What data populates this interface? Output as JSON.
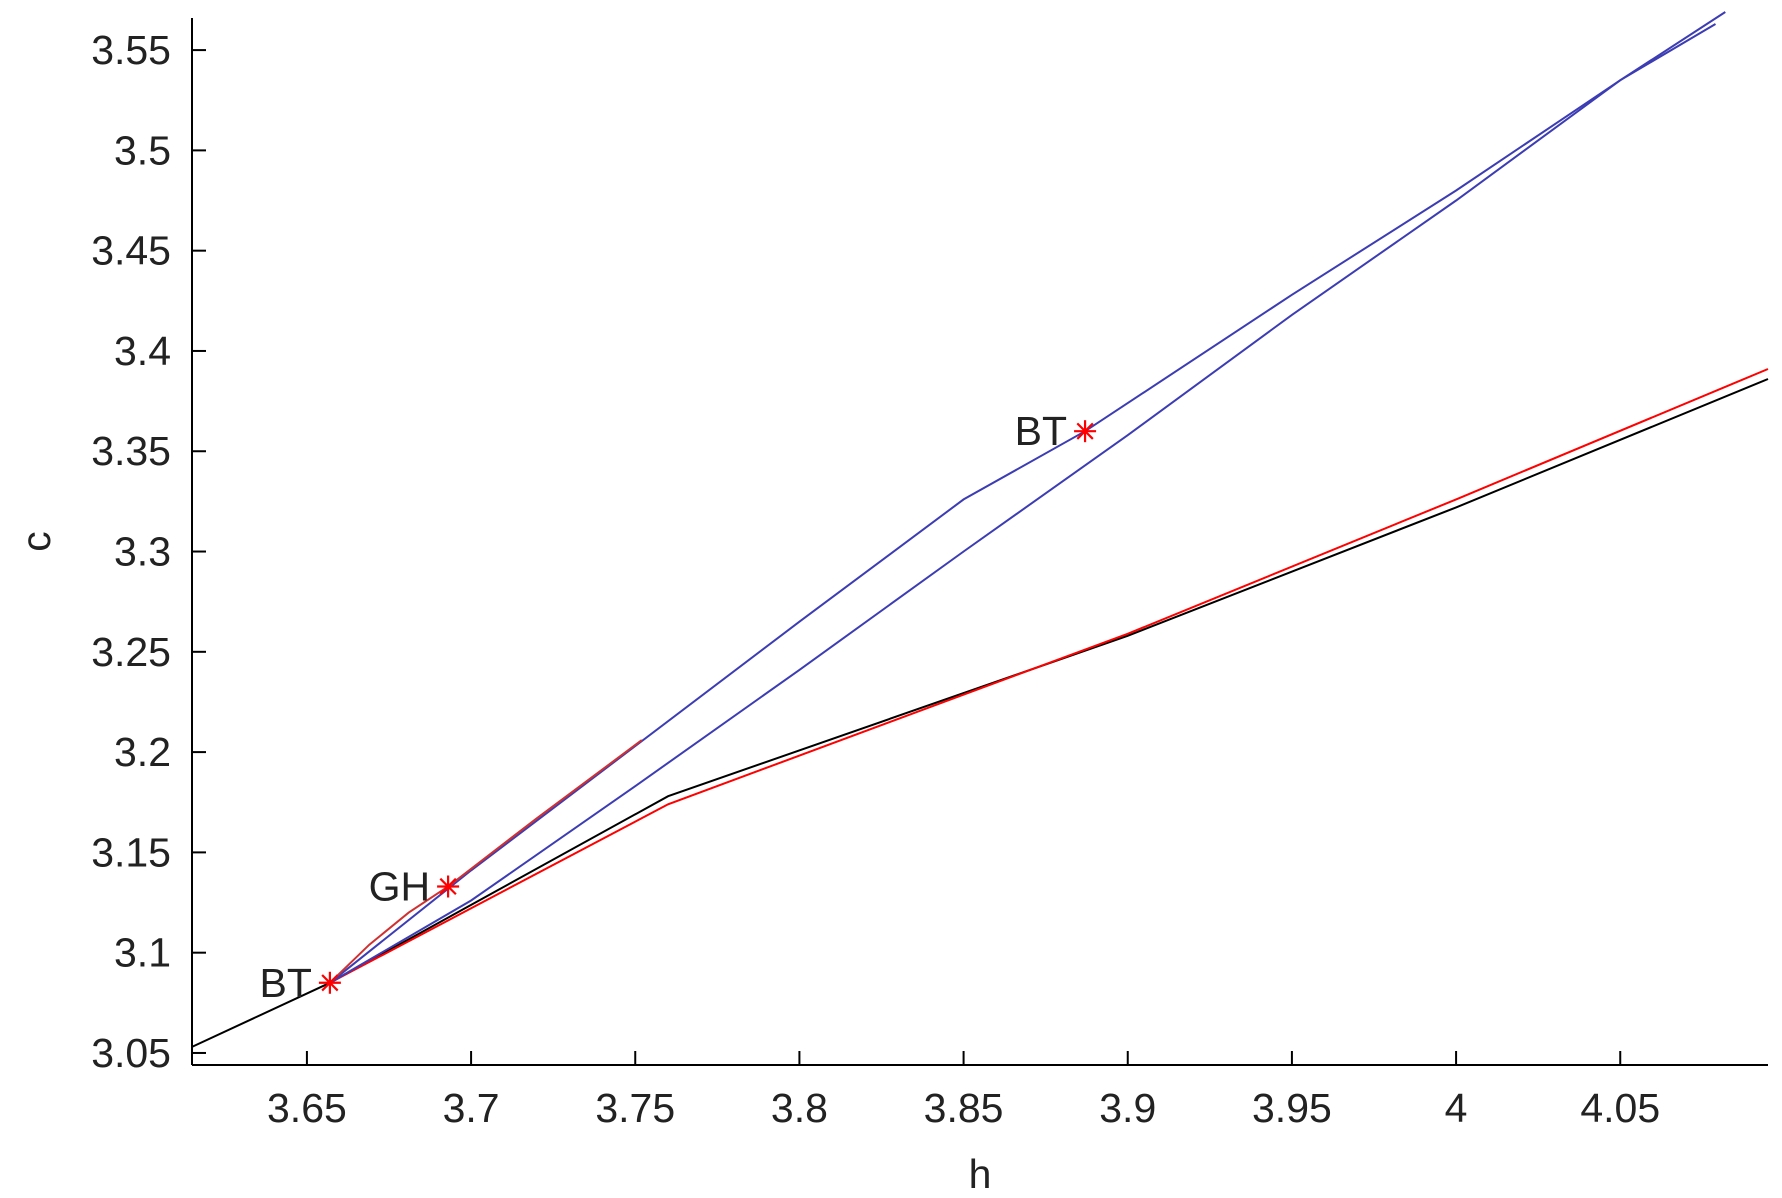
{
  "chart_data": {
    "type": "line",
    "xlabel": "h",
    "ylabel": "c",
    "xlim": [
      3.615,
      4.095
    ],
    "ylim": [
      3.044,
      3.566
    ],
    "grid": false,
    "legend": "none",
    "xticks": [
      3.65,
      3.7,
      3.75,
      3.8,
      3.85,
      3.9,
      3.95,
      4,
      4.05
    ],
    "xtick_labels": [
      "3.65",
      "3.7",
      "3.75",
      "3.8",
      "3.85",
      "3.9",
      "3.95",
      "4",
      "4.05"
    ],
    "yticks": [
      3.05,
      3.1,
      3.15,
      3.2,
      3.25,
      3.3,
      3.35,
      3.4,
      3.45,
      3.5,
      3.55
    ],
    "ytick_labels": [
      "3.05",
      "3.1",
      "3.15",
      "3.2",
      "3.25",
      "3.3",
      "3.35",
      "3.4",
      "3.45",
      "3.5",
      "3.55"
    ],
    "series": [
      {
        "color": "#000000",
        "x": [
          3.615,
          3.657,
          3.76,
          3.9,
          4.0,
          4.095
        ],
        "y": [
          3.053,
          3.085,
          3.178,
          3.258,
          3.322,
          3.386
        ]
      },
      {
        "color": "#ff0000",
        "x": [
          3.657,
          3.76,
          3.9,
          4.0,
          4.095
        ],
        "y": [
          3.085,
          3.174,
          3.259,
          3.326,
          3.391
        ]
      },
      {
        "color": "#3c3cb4",
        "x": [
          3.657,
          3.7,
          3.75,
          3.8,
          3.85,
          3.887,
          3.95,
          4.0,
          4.05,
          4.079
        ],
        "y": [
          3.085,
          3.141,
          3.203,
          3.265,
          3.326,
          3.36,
          3.428,
          3.48,
          3.535,
          3.563
        ]
      },
      {
        "color": "#3c3cb4",
        "x": [
          3.657,
          3.7,
          3.75,
          3.8,
          3.85,
          3.9,
          3.95,
          4.0,
          4.05,
          4.082
        ],
        "y": [
          3.085,
          3.126,
          3.183,
          3.241,
          3.3,
          3.358,
          3.418,
          3.475,
          3.535,
          3.569
        ]
      },
      {
        "color": "#d03030",
        "x": [
          3.657,
          3.669,
          3.681,
          3.693,
          3.72,
          3.752
        ],
        "y": [
          3.085,
          3.104,
          3.12,
          3.133,
          3.167,
          3.206
        ]
      }
    ],
    "markers": [
      {
        "x": 3.657,
        "y": 3.085,
        "label": "BT",
        "color": "#ff0000",
        "label_side": "left"
      },
      {
        "x": 3.693,
        "y": 3.133,
        "label": "GH",
        "color": "#ff0000",
        "label_side": "left"
      },
      {
        "x": 3.887,
        "y": 3.36,
        "label": "BT",
        "color": "#ff0000",
        "label_side": "left"
      }
    ]
  }
}
